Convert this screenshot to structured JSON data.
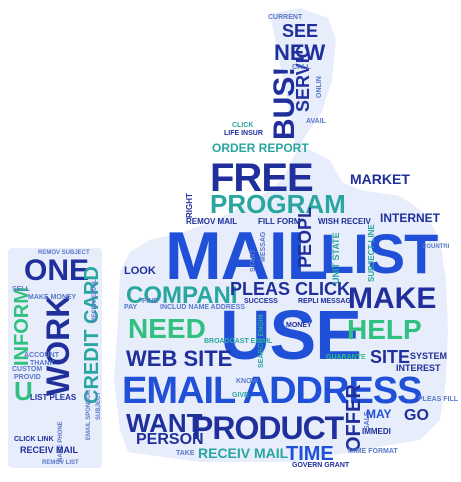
{
  "colors": {
    "dark_blue": "#1f2f9c",
    "royal_blue": "#2050d8",
    "teal": "#2aa6a0",
    "green": "#30c080",
    "filler": "#5a78c8"
  },
  "icon": "thumbs-up-shape",
  "words": {
    "mail": "MAIL",
    "list": "LIST",
    "use": "USE",
    "email_address": "EMAIL ADDRESS",
    "product": "PRODUCT",
    "free": "FREE",
    "program": "PROGRAM",
    "make": "MAKE",
    "need": "NEED",
    "help": "HELP",
    "one": "ONE",
    "work": "WORK",
    "web_site": "WEB SITE",
    "want": "WANT",
    "compani": "COMPANI",
    "pleas_click": "PLEAS CLICK",
    "credit_card": "CREDIT CARD",
    "inform": "INFORM",
    "u": "U",
    "time": "TIME",
    "offer": "OFFER",
    "person": "PERSON",
    "receiv_mail": "RECEIV MAIL",
    "bus": "BUS!",
    "new": "NEW",
    "see": "SEE",
    "servic": "SERVIC",
    "market": "MARKET",
    "order_report": "ORDER REPORT",
    "peopl": "PEOPL",
    "site": "SITE",
    "go": "GO",
    "internet": "INTERNET",
    "may": "MAY",
    "current": "CURRENT",
    "call": "CALL",
    "avail": "AVAIL",
    "onlin": "ONLIN",
    "life_insur": "LIFE INSUR",
    "click": "CLICK",
    "remov_mail": "REMOV MAIL",
    "fill_form": "FILL FORM",
    "wish_receiv": "WISH RECEIV",
    "right": "RIGHT",
    "look": "LOOK",
    "pay": "PAY",
    "find": "FIND",
    "includ_name_address": "INCLUD NAME ADDRESS",
    "repli_messag": "REPLI MESSAG",
    "success": "SUCCESS",
    "subject_line": "SUBJECT LINE",
    "start": "START",
    "messag": "MESSAG",
    "unit_state": "UNIT STATE",
    "pleas_fill": "PLEAS FILL",
    "money": "MONEY",
    "guarante": "GUARANTE",
    "system": "SYSTEM",
    "interest": "INTEREST",
    "broadcast_email": "BROADCAST EMAIL",
    "search_engin": "SEARCH ENGIN",
    "know": "KNOW",
    "give": "GIVE",
    "take": "TAKE",
    "mime_format": "MIME FORMAT",
    "govern_grant": "GOVERN GRANT",
    "immedi": "IMMEDI",
    "sale": "SALE",
    "countri": "COUNTRI",
    "remov_subject": "REMOV SUBJECT",
    "sell": "SELL",
    "make_money": "MAKE MONEY",
    "receiv_email": "RECEIV EMAIL",
    "list_pleas": "LIST PLEAS",
    "account": "ACCOUNT",
    "thank": "THANK",
    "custom": "CUSTOM",
    "provid": "PROVID",
    "click_link": "CLICK LINK",
    "name_phone": "NAME PHONE",
    "remov_list": "REMOV LIST",
    "email_sponsor": "EMAIL SPONSOR",
    "subject": "SUBJECT"
  }
}
